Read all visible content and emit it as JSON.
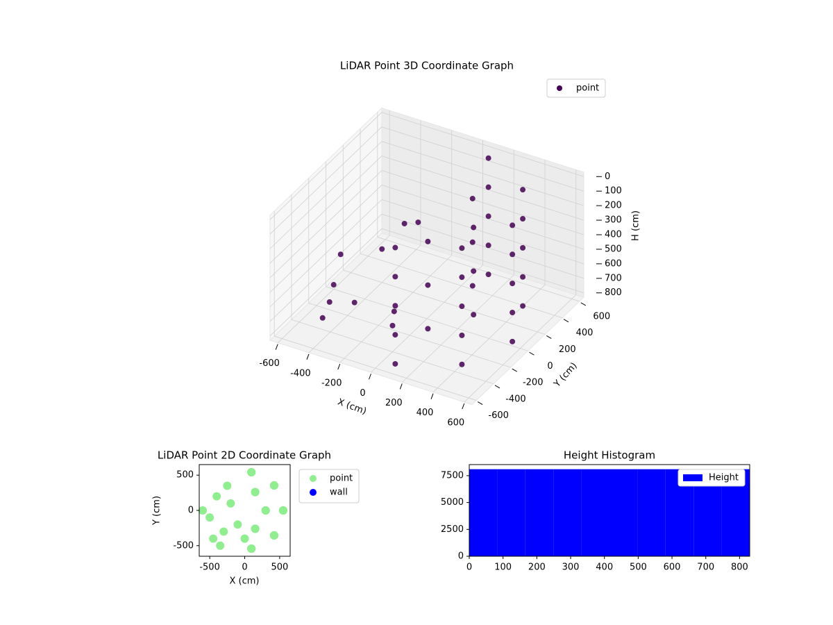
{
  "chart_data": [
    {
      "type": "scatter3d",
      "title": "LiDAR Point 3D Coordinate Graph",
      "xlabel": "X (cm)",
      "ylabel": "Y (cm)",
      "zlabel": "H (cm)",
      "xlim": [
        -650,
        650
      ],
      "ylim": [
        -650,
        650
      ],
      "zlim": [
        -30,
        830
      ],
      "z_inverted": true,
      "grid": true,
      "legend": "upper right",
      "xticks": [
        -600,
        -400,
        -200,
        0,
        200,
        400,
        600
      ],
      "yticks": [
        -600,
        -400,
        -200,
        0,
        200,
        400,
        600
      ],
      "zticks": [
        0,
        100,
        200,
        300,
        400,
        500,
        600,
        700,
        800
      ],
      "series": [
        {
          "name": "point",
          "color": "#440154",
          "x": [
            96,
            421,
            550,
            421,
            96,
            96,
            421,
            550,
            421,
            96,
            96,
            421,
            550,
            421,
            96,
            96,
            421,
            550,
            421,
            96,
            96,
            421,
            550,
            421,
            96,
            150,
            300,
            150,
            150,
            300,
            150,
            150,
            300,
            150,
            -500,
            -400,
            -300,
            -200,
            -100,
            -450,
            -250,
            -600,
            -350,
            0
          ],
          "y": [
            -542,
            -354,
            0,
            354,
            542,
            -542,
            -354,
            0,
            354,
            542,
            -542,
            -354,
            0,
            354,
            542,
            -542,
            -354,
            0,
            354,
            542,
            -542,
            -354,
            0,
            354,
            542,
            -260,
            0,
            260,
            -260,
            0,
            260,
            -260,
            0,
            260,
            -100,
            200,
            -300,
            100,
            -200,
            -400,
            350,
            0,
            -500,
            -400
          ],
          "z": [
            0,
            0,
            0,
            0,
            0,
            200,
            200,
            200,
            200,
            200,
            400,
            400,
            400,
            400,
            400,
            600,
            600,
            600,
            600,
            600,
            800,
            800,
            800,
            800,
            800,
            100,
            100,
            100,
            400,
            400,
            400,
            700,
            700,
            700,
            500,
            600,
            650,
            300,
            700,
            750,
            450,
            800,
            550,
            650
          ]
        }
      ]
    },
    {
      "type": "scatter",
      "title": "LiDAR Point 2D Coordinate Graph",
      "xlabel": "X (cm)",
      "ylabel": "Y (cm)",
      "xlim": [
        -650,
        650
      ],
      "ylim": [
        -650,
        650
      ],
      "xticks": [
        -500,
        0,
        500
      ],
      "yticks": [
        -500,
        0,
        500
      ],
      "legend": "outside right",
      "series": [
        {
          "name": "point",
          "color": "#90ee90",
          "x": [
            96,
            421,
            550,
            421,
            96,
            96,
            421,
            550,
            421,
            96,
            96,
            421,
            550,
            421,
            96,
            96,
            421,
            550,
            421,
            96,
            96,
            421,
            550,
            421,
            96,
            150,
            300,
            150,
            150,
            300,
            150,
            150,
            300,
            150,
            -500,
            -400,
            -300,
            -200,
            -100,
            -450,
            -250,
            -600,
            -350,
            0
          ],
          "y": [
            -542,
            -354,
            0,
            354,
            542,
            -542,
            -354,
            0,
            354,
            542,
            -542,
            -354,
            0,
            354,
            542,
            -542,
            -354,
            0,
            354,
            542,
            -542,
            -354,
            0,
            354,
            542,
            -260,
            0,
            260,
            -260,
            0,
            260,
            -260,
            0,
            260,
            -100,
            200,
            -300,
            100,
            -200,
            -400,
            350,
            0,
            -500,
            -400
          ]
        },
        {
          "name": "wall",
          "color": "#0000ff",
          "x": [],
          "y": []
        }
      ]
    },
    {
      "type": "histogram",
      "title": "Height Histogram",
      "legend": "upper right",
      "xlim": [
        0,
        830
      ],
      "ylim": [
        0,
        8530
      ],
      "xticks": [
        0,
        100,
        200,
        300,
        400,
        500,
        600,
        700,
        800
      ],
      "yticks": [
        0,
        2500,
        5000,
        7500
      ],
      "bins": [
        0,
        83,
        166,
        249,
        332,
        415,
        498,
        581,
        664,
        747,
        830
      ],
      "series": [
        {
          "name": "Height",
          "color": "#0000ff",
          "values": [
            8100,
            8100,
            8100,
            8100,
            8100,
            8100,
            8100,
            8100,
            8100,
            8100
          ]
        }
      ]
    }
  ]
}
